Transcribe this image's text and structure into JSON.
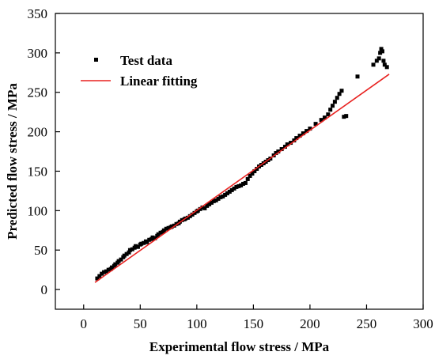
{
  "chart_data": {
    "type": "scatter",
    "xlabel": "Experimental flow stress / MPa",
    "ylabel": "Predicted flow stress / MPa",
    "xlim": [
      -25,
      300
    ],
    "ylim": [
      -25,
      350
    ],
    "xticks": [
      "0",
      "50",
      "100",
      "150",
      "200",
      "250",
      "300"
    ],
    "yticks": [
      "0",
      "50",
      "100",
      "150",
      "200",
      "250",
      "300",
      "350"
    ],
    "grid": false,
    "legend_position": "top-left",
    "series": [
      {
        "name": "Test data",
        "kind": "scatter",
        "color": "#000000",
        "marker": "square",
        "x": [
          12,
          14,
          16,
          18,
          20,
          22,
          24,
          25,
          27,
          28,
          30,
          31,
          33,
          35,
          36,
          38,
          40,
          41,
          43,
          45,
          46,
          48,
          50,
          51,
          53,
          55,
          56,
          58,
          60,
          61,
          63,
          65,
          66,
          68,
          70,
          71,
          73,
          75,
          77,
          78,
          80,
          82,
          84,
          85,
          87,
          89,
          90,
          92,
          94,
          96,
          98,
          100,
          101,
          103,
          105,
          107,
          109,
          111,
          113,
          115,
          117,
          119,
          121,
          123,
          125,
          127,
          129,
          131,
          133,
          135,
          137,
          139,
          141,
          143,
          145,
          147,
          149,
          151,
          153,
          155,
          157,
          159,
          161,
          163,
          165,
          168,
          170,
          172,
          175,
          178,
          180,
          183,
          186,
          188,
          191,
          194,
          197,
          200,
          205,
          210,
          213,
          216,
          218,
          220,
          222,
          224,
          226,
          228,
          230,
          232,
          242,
          256,
          259,
          261,
          262,
          263,
          264,
          265,
          266,
          268
        ],
        "y": [
          14,
          17,
          20,
          22,
          23,
          25,
          26,
          28,
          30,
          32,
          34,
          36,
          38,
          41,
          43,
          45,
          47,
          50,
          51,
          53,
          55,
          54,
          57,
          58,
          59,
          61,
          60,
          63,
          64,
          66,
          65,
          68,
          70,
          72,
          73,
          75,
          77,
          78,
          79,
          80,
          81,
          83,
          84,
          86,
          88,
          89,
          90,
          91,
          93,
          95,
          97,
          99,
          100,
          102,
          104,
          103,
          106,
          108,
          110,
          112,
          113,
          115,
          117,
          118,
          120,
          122,
          124,
          126,
          128,
          130,
          131,
          132,
          134,
          135,
          140,
          144,
          147,
          150,
          153,
          156,
          158,
          160,
          162,
          164,
          166,
          170,
          173,
          175,
          178,
          181,
          184,
          186,
          189,
          192,
          195,
          198,
          201,
          204,
          210,
          215,
          218,
          222,
          228,
          233,
          238,
          243,
          248,
          252,
          219,
          220,
          270,
          285,
          290,
          293,
          300,
          305,
          302,
          290,
          285,
          282
        ]
      },
      {
        "name": "Linear fitting",
        "kind": "line",
        "color": "#e8211f",
        "x": [
          10,
          270
        ],
        "y": [
          9,
          273
        ]
      }
    ]
  }
}
